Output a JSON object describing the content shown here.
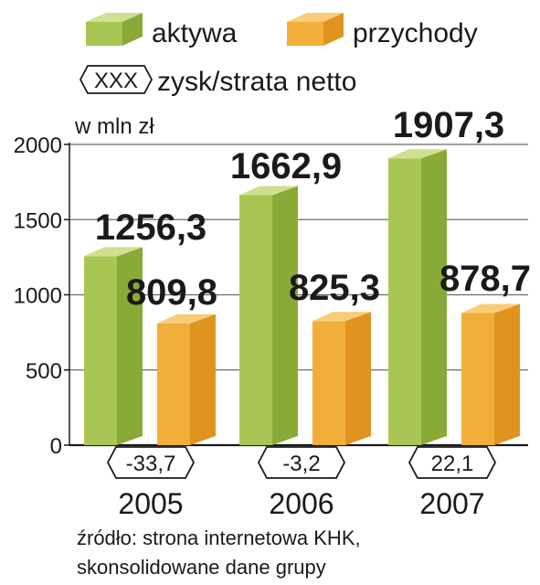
{
  "chart_data": {
    "type": "bar",
    "unit": "w mln zł",
    "categories": [
      "2005",
      "2006",
      "2007"
    ],
    "series": [
      {
        "name": "aktywa",
        "values": [
          1256.3,
          1662.9,
          1907.3
        ],
        "labels": [
          "1256,3",
          "1662,9",
          "1907,3"
        ],
        "color": "#a9c654",
        "side_color": "#8aaa38",
        "top_color": "#cfe08e"
      },
      {
        "name": "przychody",
        "values": [
          809.8,
          825.3,
          878.7
        ],
        "labels": [
          "809,8",
          "825,3",
          "878,7"
        ],
        "color": "#f2ae3a",
        "side_color": "#e09420",
        "top_color": "#f8cc79"
      }
    ],
    "net_profit": {
      "name": "zysk/strata netto",
      "legend_symbol": "XXX",
      "labels": [
        "-33,7",
        "-3,2",
        "22,1"
      ]
    },
    "yticks": [
      "0",
      "500",
      "1000",
      "1500",
      "2000"
    ],
    "ylim": [
      0,
      2000
    ],
    "source": [
      "źródło: strona internetowa KHK,",
      "skonsolidowane dane grupy"
    ]
  }
}
